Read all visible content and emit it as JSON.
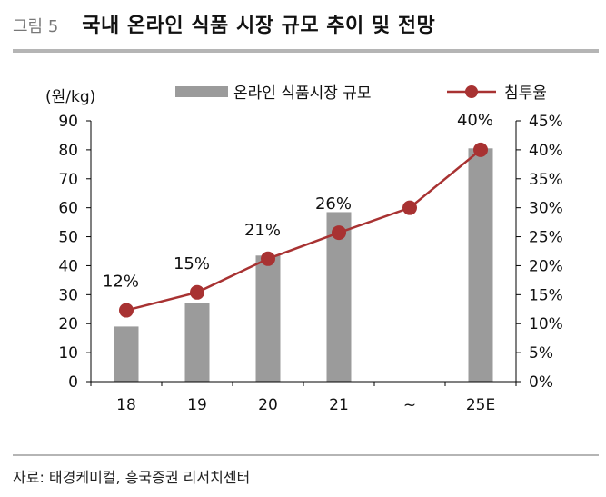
{
  "figure": {
    "label": "그림 5",
    "title": "국내 온라인 식품 시장 규모 추이 및 전망",
    "source": "자료: 태경케미컬, 흥국증권 리서치센터"
  },
  "chart_data": {
    "type": "bar+line",
    "categories": [
      "18",
      "19",
      "20",
      "21",
      "~",
      "25E"
    ],
    "left_axis": {
      "unit_label": "(원/kg)",
      "ylim": [
        0,
        90
      ],
      "ticks": [
        0,
        10,
        20,
        30,
        40,
        50,
        60,
        70,
        80,
        90
      ]
    },
    "right_axis": {
      "ylim": [
        0,
        45
      ],
      "ticks": [
        "0%",
        "5%",
        "10%",
        "15%",
        "20%",
        "25%",
        "30%",
        "35%",
        "40%",
        "45%"
      ]
    },
    "series": [
      {
        "name": "온라인 식품시장 규모",
        "type": "bar",
        "axis": "left",
        "color": "#9b9b9b",
        "values": [
          19,
          27,
          43.5,
          58.5,
          null,
          80.5
        ]
      },
      {
        "name": "침투율",
        "type": "line",
        "axis": "right",
        "color": "#a83232",
        "values": [
          12.3,
          15.4,
          21.2,
          25.7,
          30,
          40
        ],
        "data_labels": [
          "12%",
          "15%",
          "21%",
          "26%",
          "",
          "40%"
        ]
      }
    ],
    "legend": "top",
    "grid": false
  }
}
